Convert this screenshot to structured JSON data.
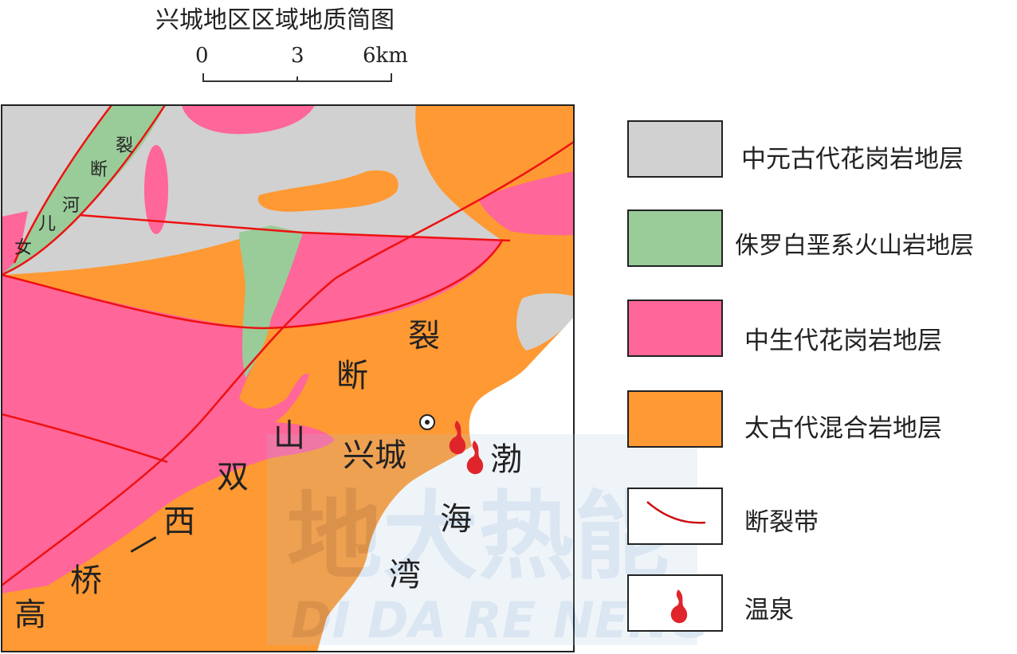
{
  "title": "兴城地区区域地质简图",
  "scale": {
    "ticks": [
      "0",
      "3",
      "6km"
    ]
  },
  "colors": {
    "granite_proterozoic": "#d1d1d1",
    "volcanic_jurassic": "#99cc99",
    "granite_mesozoic": "#ff6699",
    "migmatite_archean": "#ff9933",
    "fault": "#ee1111",
    "sea": "#ffffff"
  },
  "map_labels": {
    "nuerhe": [
      "女",
      "儿",
      "河",
      "断",
      "裂"
    ],
    "fault_main": [
      "断",
      "裂"
    ],
    "gaoqiao": [
      "高",
      "桥",
      "—",
      "西",
      "双",
      "山"
    ],
    "city": "兴城",
    "bay": [
      "渤",
      "海",
      "湾"
    ]
  },
  "legend": [
    {
      "label": "中元古代花岗岩地层",
      "swatch": "granite_proterozoic"
    },
    {
      "label": "侏罗白垩系火山岩地层",
      "swatch": "volcanic_jurassic"
    },
    {
      "label": "中生代花岗岩地层",
      "swatch": "granite_mesozoic"
    },
    {
      "label": "太古代混合岩地层",
      "swatch": "migmatite_archean"
    },
    {
      "label": "断裂带",
      "swatch": "fault-line-icon"
    },
    {
      "label": "温泉",
      "swatch": "hot-spring-icon"
    }
  ],
  "watermark": {
    "main": "地大热能",
    "sub": "DI DA RE NENG"
  }
}
